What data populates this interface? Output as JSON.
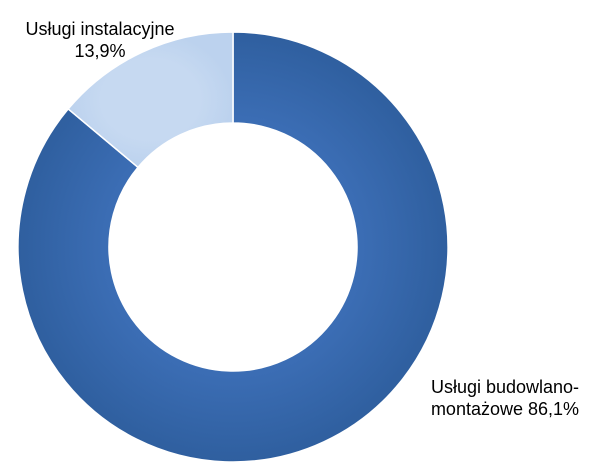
{
  "chart_data": {
    "type": "donut",
    "categories": [
      "Usługi budowlano-montażowe",
      "Usługi instalacyjne"
    ],
    "values": [
      86.1,
      13.9
    ],
    "value_labels": [
      "86,1%",
      "13,9%"
    ],
    "colors": [
      "#3b6db4",
      "#c6d9f1"
    ]
  }
}
